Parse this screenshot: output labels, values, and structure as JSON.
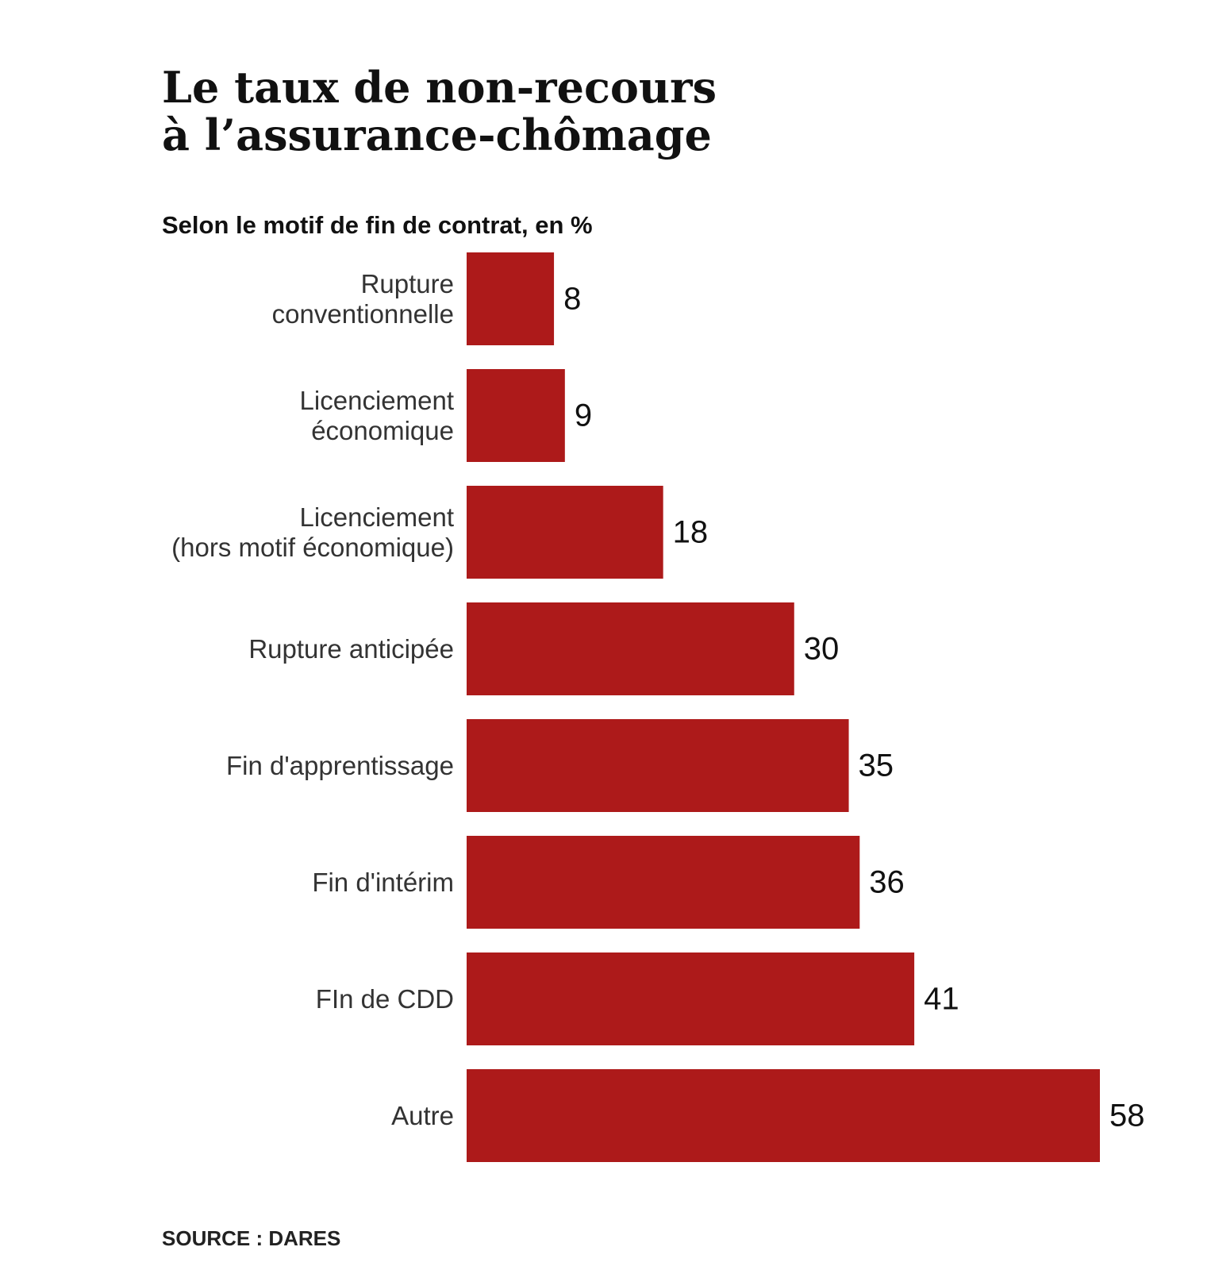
{
  "colors": {
    "bar": "#AD1A1A",
    "text": "#111111",
    "category_text": "#333333"
  },
  "chart_data": {
    "type": "bar",
    "orientation": "horizontal",
    "title": [
      "Le taux de non-recours",
      "à l’assurance-chômage"
    ],
    "subtitle": "Selon le motif de fin de contrat, en %",
    "categories": [
      [
        "Rupture",
        "conventionnelle"
      ],
      [
        "Licenciement",
        "économique"
      ],
      [
        "Licenciement",
        "(hors motif économique)"
      ],
      [
        "Rupture anticipée"
      ],
      [
        "Fin d'apprentissage"
      ],
      [
        "Fin d'intérim"
      ],
      [
        "FIn de CDD"
      ],
      [
        "Autre"
      ]
    ],
    "values": [
      8,
      9,
      18,
      30,
      35,
      36,
      41,
      58
    ],
    "xlim": [
      0,
      58
    ],
    "grid": false,
    "legend": "none",
    "source": "SOURCE : DARES"
  }
}
